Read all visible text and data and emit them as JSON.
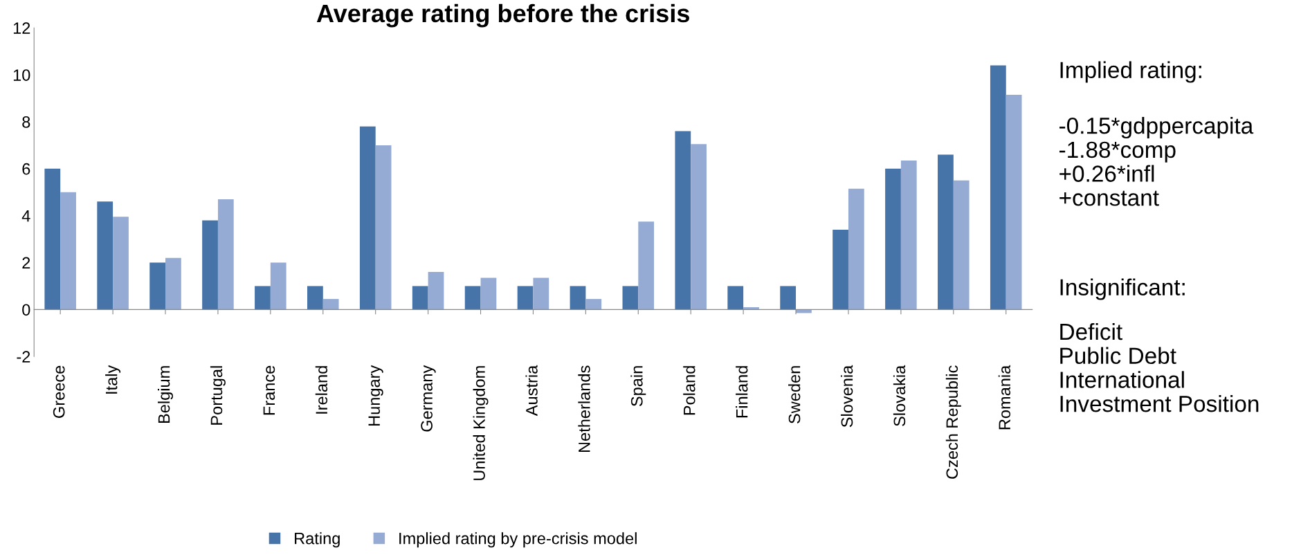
{
  "chart_data": {
    "type": "bar",
    "title": "Average rating before the crisis",
    "categories": [
      "Greece",
      "Italy",
      "Belgium",
      "Portugal",
      "France",
      "Ireland",
      "Hungary",
      "Germany",
      "United Kingdom",
      "Austria",
      "Netherlands",
      "Spain",
      "Poland",
      "Finland",
      "Sweden",
      "Slovenia",
      "Slovakia",
      "Czech Republic",
      "Romania"
    ],
    "series": [
      {
        "name": "Rating",
        "color": "#4673a8",
        "values": [
          6.0,
          4.6,
          2.0,
          3.8,
          1.0,
          1.0,
          7.8,
          1.0,
          1.0,
          1.0,
          1.0,
          1.0,
          7.6,
          1.0,
          1.0,
          3.4,
          6.0,
          6.6,
          10.4
        ]
      },
      {
        "name": "Implied rating by pre-crisis model",
        "color": "#95abd3",
        "values": [
          5.0,
          3.95,
          2.2,
          4.7,
          2.0,
          0.45,
          7.0,
          1.6,
          1.35,
          1.35,
          0.45,
          3.75,
          7.05,
          0.1,
          -0.15,
          5.15,
          6.35,
          5.5,
          9.15
        ]
      }
    ],
    "ylim": [
      -2,
      12
    ],
    "yticks": [
      -2,
      0,
      2,
      4,
      6,
      8,
      10,
      12
    ],
    "legend": "bottom",
    "annotations": [
      "Implied rating:",
      "-0.15*gdppercapita\n-1.88*comp\n+0.26*infl\n+constant",
      "Insignificant:",
      "Deficit\nPublic Debt\nInternational\nInvestment Position"
    ]
  }
}
